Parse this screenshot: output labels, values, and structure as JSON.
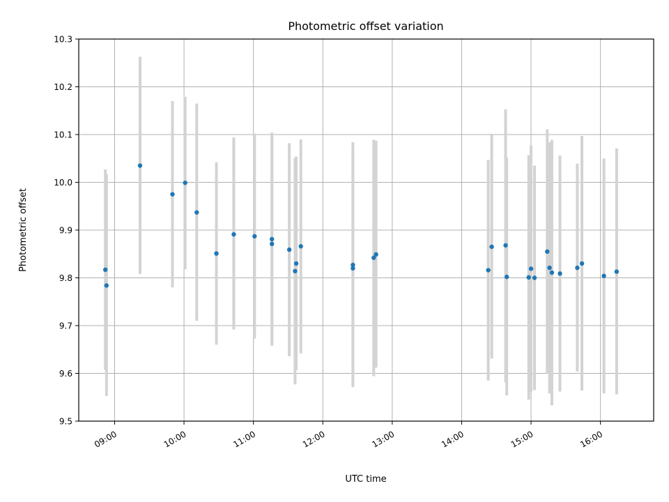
{
  "chart_data": {
    "type": "scatter",
    "title": "Photometric offset variation",
    "xlabel": "UTC time",
    "ylabel": "Photometric offset",
    "x_axis_type": "time",
    "xlim": [
      "08:29",
      "16:46"
    ],
    "ylim": [
      9.5,
      10.3
    ],
    "x_ticks": [
      "09:00",
      "10:00",
      "11:00",
      "12:00",
      "13:00",
      "14:00",
      "15:00",
      "16:00"
    ],
    "y_ticks": [
      9.5,
      9.6,
      9.7,
      9.8,
      9.9,
      10.0,
      10.1,
      10.2,
      10.3
    ],
    "grid": true,
    "legend": "none",
    "colors": {
      "point": "#1f77b4",
      "errorbar": "#d3d3d3",
      "grid": "#b0b0b0"
    },
    "series": [
      {
        "points": [
          {
            "t": "08:52",
            "y": 9.817,
            "low": 9.607,
            "high": 10.027
          },
          {
            "t": "08:53",
            "y": 9.784,
            "low": 9.553,
            "high": 10.017
          },
          {
            "t": "09:22",
            "y": 10.035,
            "low": 9.808,
            "high": 10.263
          },
          {
            "t": "09:50",
            "y": 9.975,
            "low": 9.78,
            "high": 10.17
          },
          {
            "t": "10:01",
            "y": 9.999,
            "low": 9.818,
            "high": 10.179
          },
          {
            "t": "10:11",
            "y": 9.937,
            "low": 9.71,
            "high": 10.165
          },
          {
            "t": "10:28",
            "y": 9.851,
            "low": 9.66,
            "high": 10.042
          },
          {
            "t": "10:43",
            "y": 9.891,
            "low": 9.692,
            "high": 10.094
          },
          {
            "t": "11:01",
            "y": 9.887,
            "low": 9.673,
            "high": 10.102
          },
          {
            "t": "11:16",
            "y": 9.881,
            "low": 9.658,
            "high": 10.104
          },
          {
            "t": "11:16",
            "y": 9.871,
            "low": 9.66,
            "high": 10.1
          },
          {
            "t": "11:31",
            "y": 9.859,
            "low": 9.636,
            "high": 10.082
          },
          {
            "t": "11:36",
            "y": 9.814,
            "low": 9.577,
            "high": 10.051
          },
          {
            "t": "11:37",
            "y": 9.83,
            "low": 9.607,
            "high": 10.054
          },
          {
            "t": "11:41",
            "y": 9.866,
            "low": 9.642,
            "high": 10.09
          },
          {
            "t": "12:26",
            "y": 9.827,
            "low": 9.571,
            "high": 10.084
          },
          {
            "t": "12:26",
            "y": 9.82,
            "low": 9.575,
            "high": 10.07
          },
          {
            "t": "12:44",
            "y": 9.842,
            "low": 9.594,
            "high": 10.089
          },
          {
            "t": "12:46",
            "y": 9.849,
            "low": 9.612,
            "high": 10.087
          },
          {
            "t": "14:23",
            "y": 9.816,
            "low": 9.585,
            "high": 10.047
          },
          {
            "t": "14:26",
            "y": 9.865,
            "low": 9.631,
            "high": 10.099
          },
          {
            "t": "14:38",
            "y": 9.868,
            "low": 9.581,
            "high": 10.153
          },
          {
            "t": "14:39",
            "y": 9.802,
            "low": 9.554,
            "high": 10.052
          },
          {
            "t": "14:58",
            "y": 9.801,
            "low": 9.545,
            "high": 10.057
          },
          {
            "t": "15:00",
            "y": 9.819,
            "low": 9.561,
            "high": 10.077
          },
          {
            "t": "15:03",
            "y": 9.8,
            "low": 9.565,
            "high": 10.035
          },
          {
            "t": "15:14",
            "y": 9.855,
            "low": 9.6,
            "high": 10.111
          },
          {
            "t": "15:16",
            "y": 9.821,
            "low": 9.558,
            "high": 10.084
          },
          {
            "t": "15:18",
            "y": 9.811,
            "low": 9.533,
            "high": 10.089
          },
          {
            "t": "15:25",
            "y": 9.809,
            "low": 9.562,
            "high": 10.056
          },
          {
            "t": "15:40",
            "y": 9.821,
            "low": 9.604,
            "high": 10.039
          },
          {
            "t": "15:44",
            "y": 9.83,
            "low": 9.564,
            "high": 10.097
          },
          {
            "t": "16:03",
            "y": 9.804,
            "low": 9.558,
            "high": 10.05
          },
          {
            "t": "16:14",
            "y": 9.813,
            "low": 9.556,
            "high": 10.071
          }
        ]
      }
    ]
  }
}
